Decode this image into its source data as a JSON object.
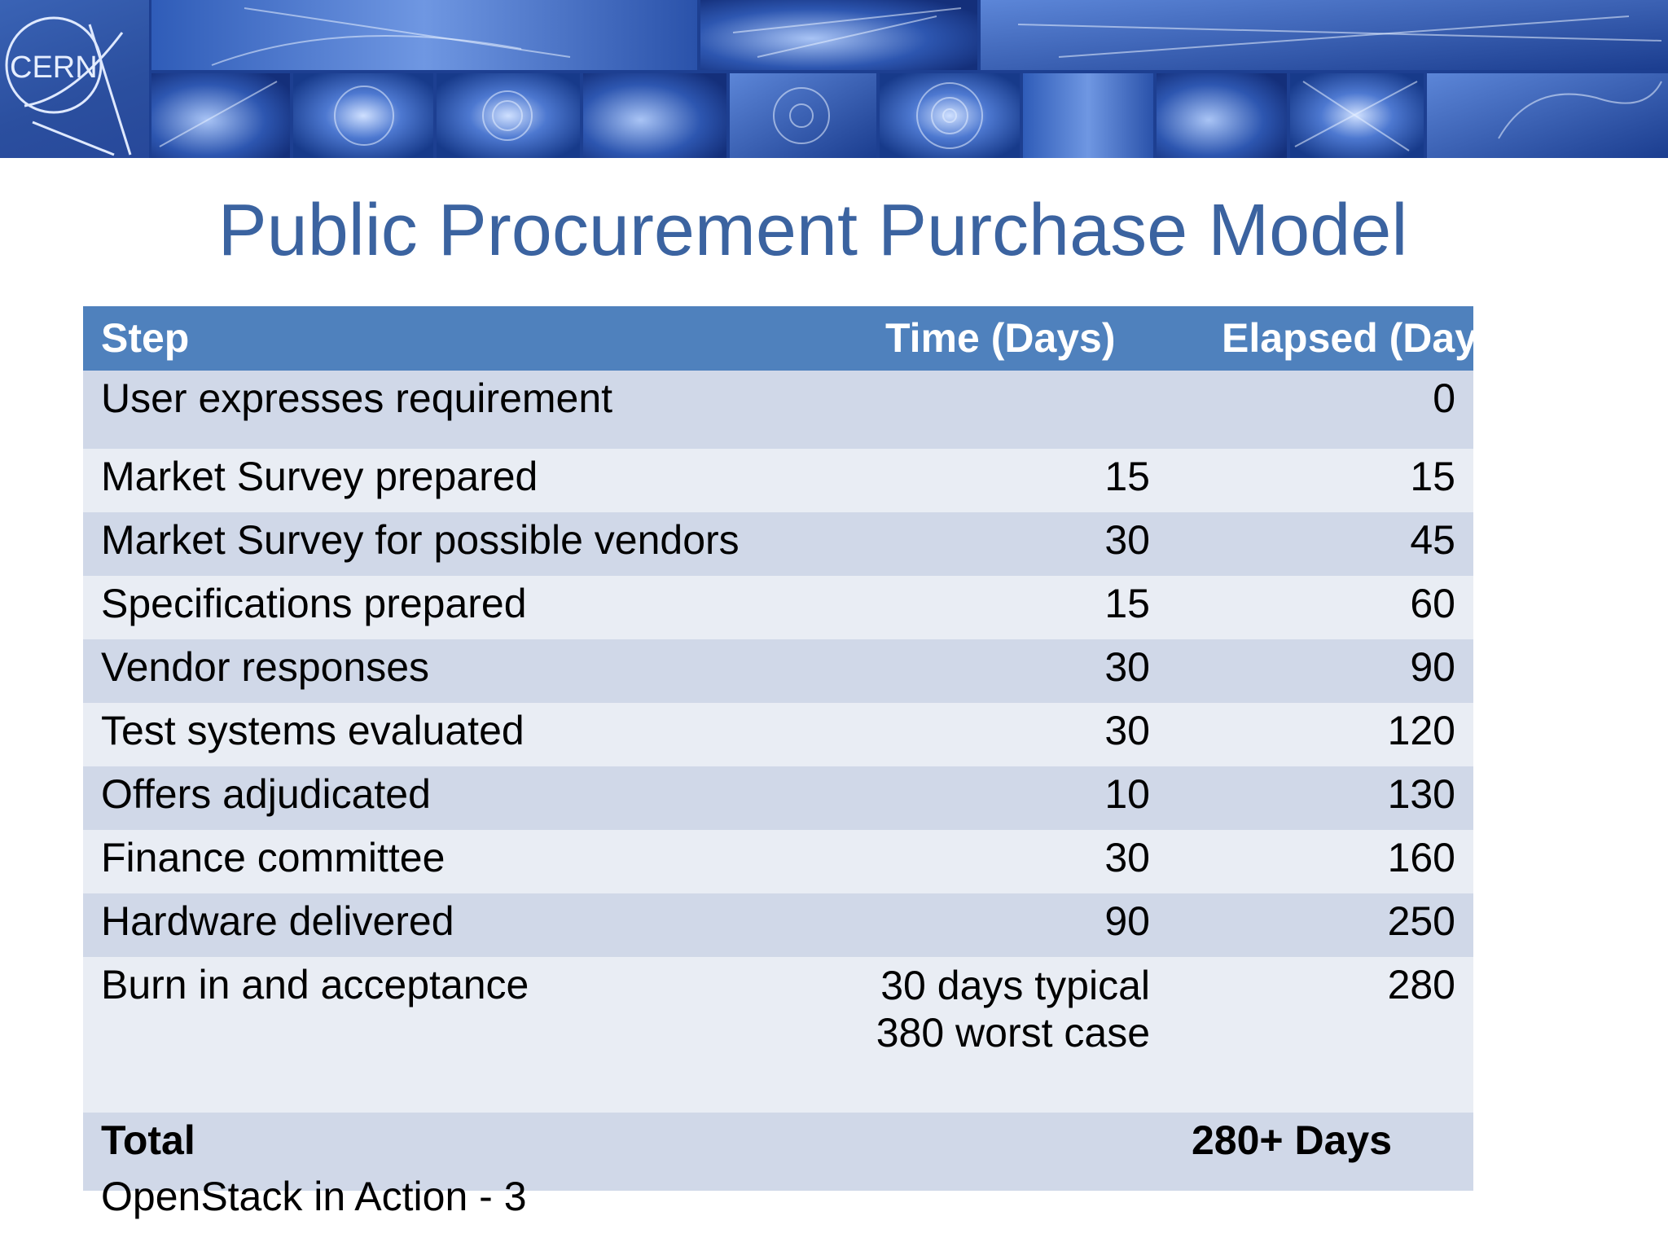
{
  "banner": {
    "logo_text": "CERN"
  },
  "title": "Public Procurement Purchase Model",
  "table": {
    "headers": {
      "step": "Step",
      "time": "Time (Days)",
      "elapsed": "Elapsed (Days)"
    },
    "rows": [
      {
        "step": "User expresses requirement",
        "time": "",
        "elapsed": "0"
      },
      {
        "step": "Market Survey prepared",
        "time": "15",
        "elapsed": "15"
      },
      {
        "step": "Market Survey for possible vendors",
        "time": "30",
        "elapsed": "45"
      },
      {
        "step": "Specifications prepared",
        "time": "15",
        "elapsed": "60"
      },
      {
        "step": "Vendor responses",
        "time": "30",
        "elapsed": "90"
      },
      {
        "step": "Test systems evaluated",
        "time": "30",
        "elapsed": "120"
      },
      {
        "step": "Offers adjudicated",
        "time": "10",
        "elapsed": "130"
      },
      {
        "step": "Finance committee",
        "time": "30",
        "elapsed": "160"
      },
      {
        "step": "Hardware delivered",
        "time": "90",
        "elapsed": "250"
      },
      {
        "step": "Burn in and acceptance",
        "time": "30 days typical 380 worst case",
        "elapsed": "280"
      }
    ],
    "total": {
      "label": "Total",
      "value": "280+ Days"
    }
  },
  "footer": "OpenStack in Action - 3"
}
